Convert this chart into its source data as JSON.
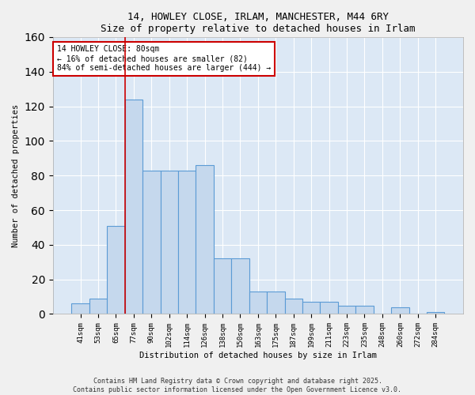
{
  "title1": "14, HOWLEY CLOSE, IRLAM, MANCHESTER, M44 6RY",
  "title2": "Size of property relative to detached houses in Irlam",
  "xlabel": "Distribution of detached houses by size in Irlam",
  "ylabel": "Number of detached properties",
  "categories": [
    "41sqm",
    "53sqm",
    "65sqm",
    "77sqm",
    "90sqm",
    "102sqm",
    "114sqm",
    "126sqm",
    "138sqm",
    "150sqm",
    "163sqm",
    "175sqm",
    "187sqm",
    "199sqm",
    "211sqm",
    "223sqm",
    "235sqm",
    "248sqm",
    "260sqm",
    "272sqm",
    "284sqm"
  ],
  "values": [
    6,
    9,
    51,
    124,
    83,
    83,
    83,
    86,
    32,
    32,
    13,
    13,
    9,
    7,
    7,
    5,
    5,
    0,
    4,
    0,
    1
  ],
  "bar_color": "#c5d8ed",
  "bar_edge_color": "#5b9bd5",
  "property_bin_index": 3,
  "vline_color": "#cc0000",
  "annotation_text": "14 HOWLEY CLOSE: 80sqm\n← 16% of detached houses are smaller (82)\n84% of semi-detached houses are larger (444) →",
  "annotation_box_color": "#ffffff",
  "annotation_box_edge": "#cc0000",
  "footer": "Contains HM Land Registry data © Crown copyright and database right 2025.\nContains public sector information licensed under the Open Government Licence v3.0.",
  "plot_bg_color": "#dce8f5",
  "fig_bg_color": "#f0f0f0",
  "ylim": [
    0,
    160
  ],
  "bar_width": 1.0
}
